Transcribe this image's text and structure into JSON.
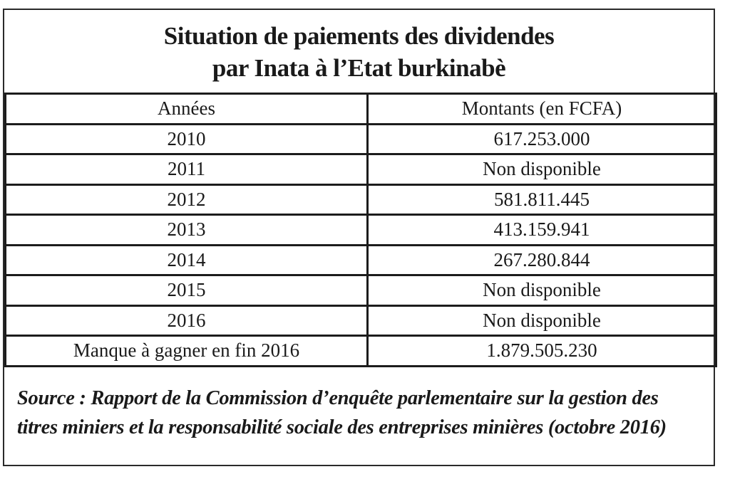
{
  "title": {
    "line1": "Situation de paiements des dividendes",
    "line2": "par Inata à l’Etat burkinabè"
  },
  "table": {
    "headers": {
      "annees": "Années",
      "montants": "Montants (en FCFA)"
    },
    "rows": [
      {
        "annee": "2010",
        "montant": "617.253.000"
      },
      {
        "annee": "2011",
        "montant": "Non disponible"
      },
      {
        "annee": "2012",
        "montant": "581.811.445"
      },
      {
        "annee": "2013",
        "montant": "413.159.941"
      },
      {
        "annee": "2014",
        "montant": "267.280.844"
      },
      {
        "annee": "2015",
        "montant": "Non disponible"
      },
      {
        "annee": "2016",
        "montant": "Non disponible"
      },
      {
        "annee": "Manque à gagner en fin 2016",
        "montant": "1.879.505.230"
      }
    ]
  },
  "source": {
    "text": "Source : Rapport de la Commission d’enquête parlementaire sur la gestion des titres miniers et la responsabilité sociale des entreprises minières (octobre 2016)"
  }
}
